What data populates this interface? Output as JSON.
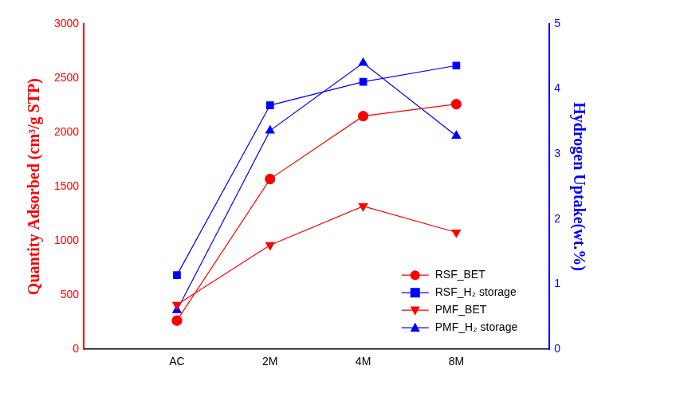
{
  "chart_data": {
    "type": "line",
    "categories": [
      "AC",
      "2M",
      "4M",
      "8M"
    ],
    "y_label": "Quantity Adsorbed (cm³/g STP)",
    "y2_label": "Hydrogen Uptake(wt.%)",
    "ylim": [
      0,
      3000
    ],
    "yticks": [
      0,
      500,
      1000,
      1500,
      2000,
      2500,
      3000
    ],
    "y2lim": [
      0,
      5
    ],
    "y2ticks": [
      0,
      1,
      2,
      3,
      4,
      5
    ],
    "grid": false,
    "legend": "lower right",
    "series": [
      {
        "name": "RSF_BET",
        "color": "#ff0000",
        "marker": "circle",
        "values": [
          265,
          1570,
          2150,
          2260
        ]
      },
      {
        "name": "RSF_H₂ storage",
        "color": "#0000ff",
        "marker": "square",
        "axis": "y2",
        "values": [
          1.14,
          3.75,
          4.11,
          4.36
        ]
      },
      {
        "name": "PMF_BET",
        "color": "#ff0000",
        "marker": "triangle_down",
        "values": [
          411,
          961,
          1320,
          1078
        ]
      },
      {
        "name": "PMF_H₂ storage",
        "color": "#0000ff",
        "marker": "triangle",
        "axis": "y2",
        "values": [
          0.6,
          3.36,
          4.4,
          3.28
        ]
      }
    ]
  }
}
